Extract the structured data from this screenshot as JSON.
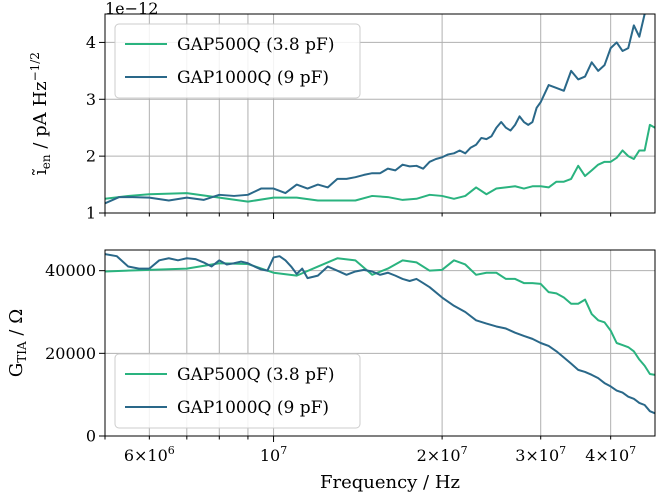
{
  "chart_data": [
    {
      "type": "line",
      "xlabel": "",
      "ylabel": "ĩ_en / pA Hz^-1/2",
      "ylabel_parts": {
        "main": "ĩ",
        "sub": "en",
        "unit": "/  pA Hz",
        "sup": "−1/2"
      },
      "y_multiplier_label": "1e−12",
      "x_scale": "log",
      "xlim": [
        5000000,
        48000000
      ],
      "ylim": [
        1,
        4.5
      ],
      "yticks": [
        1,
        2,
        3,
        4
      ],
      "ytick_labels": [
        "1",
        "2",
        "3",
        "4"
      ],
      "grid": true,
      "legend_position": "upper-left",
      "series": [
        {
          "name": "GAP500Q (3.8 pF)",
          "color": "#2ab37f",
          "x": [
            5000000,
            5500000,
            6000000,
            7000000,
            8000000,
            9000000,
            10000000,
            11000000,
            12000000,
            13000000,
            14000000,
            15000000,
            16000000,
            17000000,
            18000000,
            19000000,
            20000000,
            21000000,
            22000000,
            23000000,
            24000000,
            25000000,
            26000000,
            27000000,
            28000000,
            29000000,
            30000000,
            31000000,
            32000000,
            33000000,
            34000000,
            35000000,
            36000000,
            37000000,
            38000000,
            39000000,
            40000000,
            41000000,
            42000000,
            43000000,
            44000000,
            45000000,
            46000000,
            47000000,
            48000000
          ],
          "y": [
            1.25,
            1.3,
            1.33,
            1.35,
            1.27,
            1.2,
            1.27,
            1.27,
            1.22,
            1.22,
            1.22,
            1.3,
            1.28,
            1.23,
            1.25,
            1.32,
            1.3,
            1.25,
            1.3,
            1.45,
            1.33,
            1.43,
            1.45,
            1.47,
            1.43,
            1.47,
            1.47,
            1.45,
            1.55,
            1.55,
            1.6,
            1.83,
            1.65,
            1.75,
            1.85,
            1.9,
            1.9,
            1.97,
            2.1,
            2.0,
            1.95,
            2.1,
            2.1,
            2.55,
            2.5
          ]
        },
        {
          "name": "GAP1000Q (9 pF)",
          "color": "#2a6889",
          "x": [
            5000000,
            5300000,
            5600000,
            6000000,
            6500000,
            7000000,
            7500000,
            8000000,
            8500000,
            9000000,
            9500000,
            10000000,
            10500000,
            11000000,
            11500000,
            12000000,
            12500000,
            13000000,
            13500000,
            14000000,
            14500000,
            15000000,
            15500000,
            16000000,
            16500000,
            17000000,
            17500000,
            18000000,
            18500000,
            19000000,
            19500000,
            20000000,
            20500000,
            21000000,
            21500000,
            22000000,
            22500000,
            23000000,
            23500000,
            24000000,
            24500000,
            25000000,
            25500000,
            26000000,
            26500000,
            27000000,
            27500000,
            28000000,
            28500000,
            29000000,
            29500000,
            30000000,
            31000000,
            32000000,
            33000000,
            34000000,
            35000000,
            36000000,
            37000000,
            38000000,
            39000000,
            40000000,
            41000000,
            42000000,
            43000000,
            44000000,
            45000000,
            46000000,
            47000000,
            48000000
          ],
          "y": [
            1.17,
            1.28,
            1.28,
            1.27,
            1.22,
            1.27,
            1.23,
            1.32,
            1.3,
            1.32,
            1.43,
            1.43,
            1.35,
            1.5,
            1.43,
            1.5,
            1.45,
            1.6,
            1.6,
            1.63,
            1.67,
            1.7,
            1.7,
            1.78,
            1.75,
            1.85,
            1.82,
            1.83,
            1.78,
            1.9,
            1.95,
            1.98,
            2.03,
            2.05,
            2.1,
            2.05,
            2.15,
            2.2,
            2.32,
            2.3,
            2.35,
            2.5,
            2.6,
            2.5,
            2.45,
            2.55,
            2.7,
            2.6,
            2.55,
            2.6,
            2.85,
            2.95,
            3.25,
            3.2,
            3.15,
            3.5,
            3.35,
            3.4,
            3.65,
            3.5,
            3.6,
            3.9,
            4.0,
            3.85,
            3.9,
            4.3,
            4.1,
            4.5,
            4.55,
            4.6
          ]
        }
      ]
    },
    {
      "type": "line",
      "xlabel": "Frequency / Hz",
      "ylabel": "G_TIA / Ω",
      "ylabel_parts": {
        "main": "G",
        "sub": "TIA",
        "unit": "/  Ω"
      },
      "x_scale": "log",
      "xlim": [
        5000000,
        48000000
      ],
      "ylim": [
        0,
        45000
      ],
      "yticks": [
        0,
        20000,
        40000
      ],
      "ytick_labels": [
        "0",
        "20000",
        "40000"
      ],
      "xtick_labels": {
        "major": [
          {
            "value": 10000000,
            "label": "10",
            "sup": "7"
          }
        ],
        "minor": [
          {
            "value": 6000000,
            "label": "6×10",
            "sup": "6"
          },
          {
            "value": 20000000,
            "label": "2×10",
            "sup": "7"
          },
          {
            "value": 30000000,
            "label": "3×10",
            "sup": "7"
          },
          {
            "value": 40000000,
            "label": "4×10",
            "sup": "7"
          }
        ]
      },
      "grid": true,
      "legend_position": "lower-left",
      "series": [
        {
          "name": "GAP500Q (3.8 pF)",
          "color": "#2ab37f",
          "x": [
            5000000,
            6000000,
            7000000,
            8000000,
            9000000,
            10000000,
            11000000,
            12000000,
            13000000,
            14000000,
            15000000,
            16000000,
            17000000,
            18000000,
            19000000,
            20000000,
            21000000,
            22000000,
            23000000,
            24000000,
            25000000,
            26000000,
            27000000,
            28000000,
            29000000,
            30000000,
            31000000,
            32000000,
            33000000,
            34000000,
            35000000,
            36000000,
            37000000,
            38000000,
            39000000,
            40000000,
            41000000,
            42000000,
            43000000,
            44000000,
            45000000,
            46000000,
            47000000,
            48000000
          ],
          "y": [
            39800,
            40200,
            40500,
            41800,
            41600,
            39500,
            38800,
            41000,
            43000,
            42500,
            39000,
            40500,
            42500,
            42000,
            40000,
            40200,
            42500,
            41500,
            39000,
            39500,
            39500,
            38000,
            38000,
            37000,
            37000,
            36800,
            34800,
            34500,
            33500,
            32000,
            32000,
            33000,
            29500,
            28000,
            27500,
            25500,
            22500,
            22000,
            21500,
            20500,
            18500,
            17000,
            15000,
            14800
          ]
        },
        {
          "name": "GAP1000Q (9 pF)",
          "color": "#2a6889",
          "x": [
            5000000,
            5250000,
            5500000,
            5750000,
            6000000,
            6250000,
            6500000,
            6750000,
            7000000,
            7250000,
            7500000,
            7750000,
            8000000,
            8250000,
            8500000,
            8750000,
            9000000,
            9250000,
            9500000,
            9750000,
            10000000,
            10250000,
            10500000,
            10750000,
            11000000,
            11250000,
            11500000,
            11750000,
            12000000,
            12500000,
            13000000,
            13500000,
            14000000,
            14500000,
            15000000,
            15500000,
            16000000,
            16500000,
            17000000,
            17500000,
            18000000,
            18500000,
            19000000,
            20000000,
            21000000,
            22000000,
            23000000,
            24000000,
            25000000,
            26000000,
            27000000,
            28000000,
            29000000,
            30000000,
            31000000,
            32000000,
            33000000,
            34000000,
            35000000,
            36000000,
            37000000,
            38000000,
            39000000,
            40000000,
            41000000,
            42000000,
            43000000,
            44000000,
            45000000,
            46000000,
            47000000,
            48000000
          ],
          "y": [
            44000,
            43500,
            41000,
            40500,
            40500,
            42500,
            43000,
            42500,
            43000,
            42800,
            42000,
            41000,
            42500,
            41500,
            41800,
            42200,
            41800,
            41000,
            40300,
            40000,
            43200,
            43500,
            42500,
            41000,
            39200,
            40500,
            38200,
            38500,
            38800,
            41000,
            40000,
            39000,
            39800,
            40200,
            39800,
            39000,
            39500,
            38800,
            38000,
            37500,
            38000,
            37000,
            36000,
            33500,
            31500,
            30000,
            28000,
            27200,
            26500,
            26000,
            25000,
            24200,
            23500,
            22500,
            21800,
            20500,
            19000,
            17500,
            16000,
            15500,
            14800,
            14000,
            12800,
            12000,
            11000,
            10500,
            9500,
            9000,
            8000,
            7500,
            6000,
            5500
          ]
        }
      ]
    }
  ]
}
